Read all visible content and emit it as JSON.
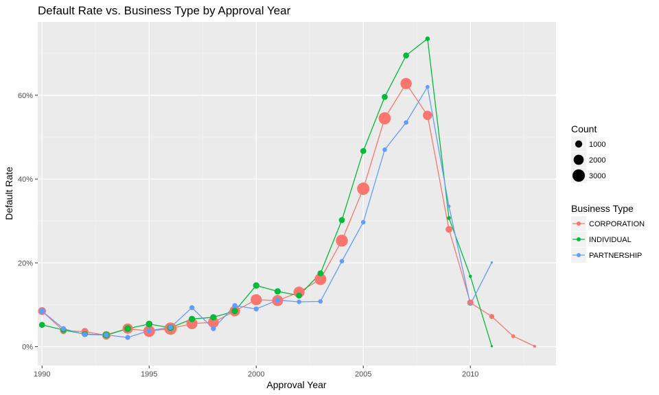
{
  "chart_data": {
    "type": "line",
    "title": "Default Rate vs. Business Type by Approval Year",
    "xlabel": "Approval Year",
    "ylabel": "Default Rate",
    "xlim": [
      1989.8,
      2014.0
    ],
    "ylim": [
      -0.045,
      0.775
    ],
    "x_ticks": [
      1990,
      1995,
      2000,
      2005,
      2010
    ],
    "y_ticks": [
      0,
      0.2,
      0.4,
      0.6
    ],
    "y_tick_labels": [
      "0%",
      "20%",
      "40%",
      "60%"
    ],
    "grid": true,
    "legend_placement": "right",
    "size_legend": {
      "title": "Count",
      "entries": [
        {
          "label": "1000",
          "value": 1000
        },
        {
          "label": "2000",
          "value": 2000
        },
        {
          "label": "3000",
          "value": 3000
        }
      ]
    },
    "color_legend_title": "Business Type",
    "series": [
      {
        "name": "CORPORATION",
        "color": "#F8766D",
        "points": [
          {
            "x": 1990,
            "y": 0.085,
            "count": 1200
          },
          {
            "x": 1991,
            "y": 0.038,
            "count": 900
          },
          {
            "x": 1992,
            "y": 0.036,
            "count": 1000
          },
          {
            "x": 1993,
            "y": 0.027,
            "count": 1400
          },
          {
            "x": 1994,
            "y": 0.043,
            "count": 2100
          },
          {
            "x": 1995,
            "y": 0.037,
            "count": 2600
          },
          {
            "x": 1996,
            "y": 0.043,
            "count": 3000
          },
          {
            "x": 1997,
            "y": 0.055,
            "count": 2400
          },
          {
            "x": 1998,
            "y": 0.058,
            "count": 2300
          },
          {
            "x": 1999,
            "y": 0.085,
            "count": 2200
          },
          {
            "x": 2000,
            "y": 0.112,
            "count": 2400
          },
          {
            "x": 2001,
            "y": 0.11,
            "count": 2400
          },
          {
            "x": 2002,
            "y": 0.13,
            "count": 2400
          },
          {
            "x": 2003,
            "y": 0.161,
            "count": 2700
          },
          {
            "x": 2004,
            "y": 0.253,
            "count": 2800
          },
          {
            "x": 2005,
            "y": 0.377,
            "count": 3000
          },
          {
            "x": 2006,
            "y": 0.545,
            "count": 2900
          },
          {
            "x": 2007,
            "y": 0.628,
            "count": 2500
          },
          {
            "x": 2008,
            "y": 0.552,
            "count": 1700
          },
          {
            "x": 2009,
            "y": 0.28,
            "count": 900
          },
          {
            "x": 2010,
            "y": 0.105,
            "count": 800
          },
          {
            "x": 2011,
            "y": 0.072,
            "count": 500
          },
          {
            "x": 2012,
            "y": 0.025,
            "count": 300
          },
          {
            "x": 2013,
            "y": 0.001,
            "count": 150
          }
        ]
      },
      {
        "name": "INDIVIDUAL",
        "color": "#00BA38",
        "points": [
          {
            "x": 1990,
            "y": 0.052,
            "count": 700
          },
          {
            "x": 1991,
            "y": 0.04,
            "count": 700
          },
          {
            "x": 1992,
            "y": 0.03,
            "count": 700
          },
          {
            "x": 1993,
            "y": 0.028,
            "count": 900
          },
          {
            "x": 1994,
            "y": 0.043,
            "count": 900
          },
          {
            "x": 1995,
            "y": 0.054,
            "count": 900
          },
          {
            "x": 1996,
            "y": 0.045,
            "count": 900
          },
          {
            "x": 1997,
            "y": 0.066,
            "count": 800
          },
          {
            "x": 1998,
            "y": 0.07,
            "count": 800
          },
          {
            "x": 1999,
            "y": 0.085,
            "count": 800
          },
          {
            "x": 2000,
            "y": 0.146,
            "count": 800
          },
          {
            "x": 2001,
            "y": 0.132,
            "count": 800
          },
          {
            "x": 2002,
            "y": 0.122,
            "count": 700
          },
          {
            "x": 2003,
            "y": 0.175,
            "count": 700
          },
          {
            "x": 2004,
            "y": 0.302,
            "count": 700
          },
          {
            "x": 2005,
            "y": 0.467,
            "count": 700
          },
          {
            "x": 2006,
            "y": 0.596,
            "count": 700
          },
          {
            "x": 2007,
            "y": 0.695,
            "count": 700
          },
          {
            "x": 2008,
            "y": 0.735,
            "count": 400
          },
          {
            "x": 2009,
            "y": 0.307,
            "count": 300
          },
          {
            "x": 2010,
            "y": 0.168,
            "count": 200
          },
          {
            "x": 2011,
            "y": 0.001,
            "count": 100
          }
        ]
      },
      {
        "name": "PARTNERSHIP",
        "color": "#619CFF",
        "points": [
          {
            "x": 1990,
            "y": 0.085,
            "count": 700
          },
          {
            "x": 1991,
            "y": 0.043,
            "count": 500
          },
          {
            "x": 1992,
            "y": 0.029,
            "count": 500
          },
          {
            "x": 1993,
            "y": 0.028,
            "count": 500
          },
          {
            "x": 1994,
            "y": 0.022,
            "count": 500
          },
          {
            "x": 1995,
            "y": 0.038,
            "count": 500
          },
          {
            "x": 1996,
            "y": 0.046,
            "count": 500
          },
          {
            "x": 1997,
            "y": 0.093,
            "count": 500
          },
          {
            "x": 1998,
            "y": 0.043,
            "count": 500
          },
          {
            "x": 1999,
            "y": 0.098,
            "count": 500
          },
          {
            "x": 2000,
            "y": 0.09,
            "count": 500
          },
          {
            "x": 2001,
            "y": 0.111,
            "count": 500
          },
          {
            "x": 2002,
            "y": 0.107,
            "count": 400
          },
          {
            "x": 2003,
            "y": 0.108,
            "count": 400
          },
          {
            "x": 2004,
            "y": 0.204,
            "count": 400
          },
          {
            "x": 2005,
            "y": 0.297,
            "count": 400
          },
          {
            "x": 2006,
            "y": 0.47,
            "count": 400
          },
          {
            "x": 2007,
            "y": 0.535,
            "count": 400
          },
          {
            "x": 2008,
            "y": 0.62,
            "count": 300
          },
          {
            "x": 2009,
            "y": 0.335,
            "count": 200
          },
          {
            "x": 2010,
            "y": 0.101,
            "count": 100
          },
          {
            "x": 2011,
            "y": 0.201,
            "count": 100
          }
        ]
      }
    ]
  }
}
